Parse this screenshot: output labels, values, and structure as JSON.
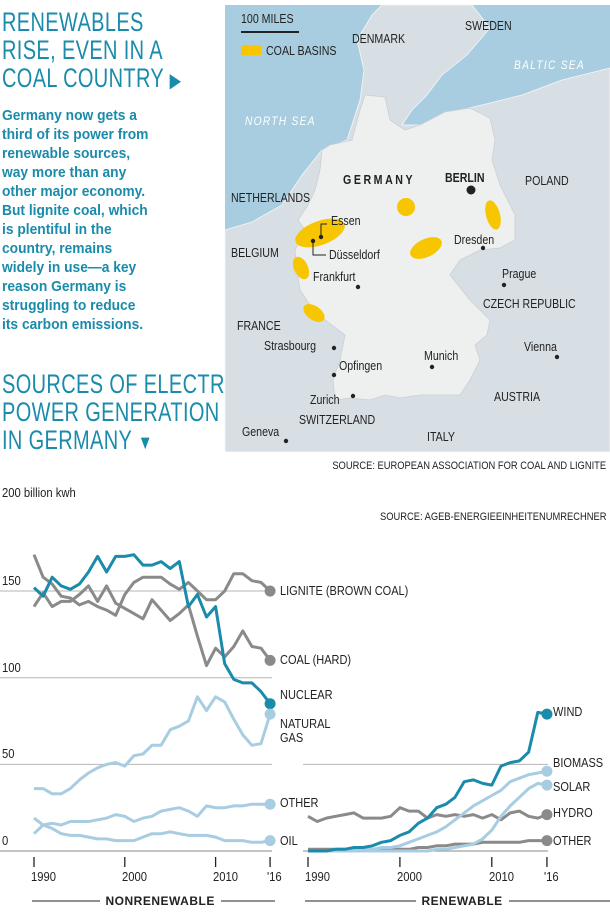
{
  "header": {
    "title_lines": [
      "RENEWABLES",
      "RISE, EVEN IN A",
      "COAL COUNTRY"
    ],
    "intro_lines": [
      "Germany now gets a",
      "third of its power from",
      "renewable sources,",
      "way more than any",
      "other major economy.",
      "But lignite coal, which",
      "is plentiful in the",
      "country, remains",
      "widely in use—a key",
      "reason Germany is",
      "struggling to reduce",
      "its carbon emissions."
    ],
    "section_title_lines": [
      "SOURCES OF ELECTRIC",
      "POWER GENERATION",
      "IN GERMANY"
    ],
    "accent_color": "#1a8bab"
  },
  "map": {
    "scale_label": "100 MILES",
    "legend_label": "COAL BASINS",
    "coal_color": "#f7c600",
    "labels": {
      "denmark": "DENMARK",
      "sweden": "SWEDEN",
      "baltic_sea": "BALTIC SEA",
      "north_sea": "NORTH SEA",
      "germany": "GERMANY",
      "berlin": "BERLIN",
      "poland": "POLAND",
      "netherlands": "NETHERLANDS",
      "essen": "Essen",
      "dusseldorf": "Düsseldorf",
      "belgium": "BELGIUM",
      "dresden": "Dresden",
      "frankfurt": "Frankfurt",
      "prague": "Prague",
      "czech_republic": "CZECH REPUBLIC",
      "france": "FRANCE",
      "strasbourg": "Strasbourg",
      "vienna": "Vienna",
      "munich": "Munich",
      "opfingen": "Opfingen",
      "zurich": "Zurich",
      "austria": "AUSTRIA",
      "switzerland": "SWITZERLAND",
      "geneva": "Geneva",
      "italy": "ITALY"
    },
    "source": "SOURCE: EUROPEAN ASSOCIATION FOR COAL AND LIGNITE"
  },
  "chart_data": [
    {
      "type": "line",
      "title": "Nonrenewable",
      "panel_label": "NONRENEWABLE",
      "ylabel": "200 billion kwh",
      "ylim": [
        0,
        200
      ],
      "yticks": [
        "0",
        "50",
        "100",
        "150"
      ],
      "xticks": [
        "1990",
        "2000",
        "2010",
        "'16"
      ],
      "x": [
        1990,
        1991,
        1992,
        1993,
        1994,
        1995,
        1996,
        1997,
        1998,
        1999,
        2000,
        2001,
        2002,
        2003,
        2004,
        2005,
        2006,
        2007,
        2008,
        2009,
        2010,
        2011,
        2012,
        2013,
        2014,
        2015,
        2016
      ],
      "series": [
        {
          "name": "LIGNITE (BROWN COAL)",
          "color": "#8a8a8a",
          "values": [
            171,
            158,
            154,
            147,
            146,
            142,
            144,
            141,
            139,
            136,
            148,
            155,
            158,
            158,
            158,
            154,
            151,
            155,
            150,
            145,
            145,
            150,
            160,
            160,
            156,
            155,
            150
          ]
        },
        {
          "name": "COAL (HARD)",
          "color": "#8a8a8a",
          "values": [
            141,
            149,
            141,
            144,
            144,
            148,
            153,
            144,
            153,
            143,
            140,
            137,
            134,
            145,
            139,
            133,
            137,
            142,
            124,
            107,
            117,
            112,
            118,
            127,
            118,
            117,
            110
          ]
        },
        {
          "name": "NUCLEAR",
          "color": "#1a8bab",
          "values": [
            152,
            147,
            158,
            153,
            151,
            154,
            161,
            170,
            161,
            170,
            170,
            171,
            165,
            165,
            167,
            163,
            167,
            141,
            148,
            135,
            141,
            108,
            99,
            97,
            97,
            92,
            85
          ]
        },
        {
          "name": "NATURAL GAS",
          "color": "#a8cde2",
          "values": [
            36,
            36,
            33,
            33,
            36,
            41,
            45,
            48,
            50,
            51,
            49,
            55,
            56,
            61,
            61,
            70,
            72,
            75,
            89,
            81,
            89,
            86,
            76,
            67,
            61,
            62,
            79
          ]
        },
        {
          "name": "OTHER",
          "color": "#a8cde2",
          "values": [
            10,
            15,
            16,
            15,
            17,
            17,
            17,
            18,
            19,
            21,
            20,
            17,
            19,
            20,
            23,
            24,
            25,
            23,
            20,
            26,
            25,
            25,
            26,
            26,
            27,
            27,
            27
          ]
        },
        {
          "name": "OIL",
          "color": "#a8cde2",
          "values": [
            19,
            15,
            13,
            10,
            9,
            9,
            8,
            7,
            7,
            6,
            6,
            6,
            8,
            10,
            10,
            11,
            10,
            9,
            9,
            9,
            8,
            6,
            6,
            6,
            5,
            5,
            6
          ]
        }
      ]
    },
    {
      "type": "line",
      "title": "Renewable",
      "panel_label": "RENEWABLE",
      "ylim": [
        0,
        200
      ],
      "xticks": [
        "1990",
        "2000",
        "2010",
        "'16"
      ],
      "source": "SOURCE: AGEB-ENERGIEEINHEITENUMRECHNER",
      "x": [
        1990,
        1991,
        1992,
        1993,
        1994,
        1995,
        1996,
        1997,
        1998,
        1999,
        2000,
        2001,
        2002,
        2003,
        2004,
        2005,
        2006,
        2007,
        2008,
        2009,
        2010,
        2011,
        2012,
        2013,
        2014,
        2015,
        2016
      ],
      "series": [
        {
          "name": "HYDRO",
          "color": "#8a8a8a",
          "values": [
            20,
            17,
            19,
            20,
            21,
            22,
            19,
            19,
            19,
            20,
            25,
            23,
            23,
            19,
            21,
            20,
            21,
            20,
            21,
            19,
            21,
            18,
            22,
            23,
            20,
            19,
            21
          ]
        },
        {
          "name": "OTHER",
          "color": "#8a8a8a",
          "values": [
            1,
            1,
            1,
            1,
            1,
            1,
            1,
            1,
            1,
            1,
            1,
            1,
            2,
            2,
            3,
            3,
            4,
            4,
            4,
            5,
            5,
            5,
            5,
            5,
            6,
            6,
            6
          ]
        },
        {
          "name": "SOLAR",
          "color": "#a8cde2",
          "values": [
            0,
            0,
            0,
            0,
            0,
            0,
            0,
            0,
            0,
            0,
            0,
            0,
            0,
            0,
            1,
            1,
            2,
            3,
            4,
            7,
            12,
            20,
            26,
            31,
            36,
            39,
            38
          ]
        },
        {
          "name": "BIOMASS",
          "color": "#a8cde2",
          "values": [
            0,
            0,
            0,
            0,
            0,
            1,
            1,
            1,
            2,
            2,
            3,
            5,
            7,
            9,
            11,
            14,
            18,
            22,
            26,
            29,
            32,
            35,
            40,
            42,
            44,
            45,
            46
          ]
        },
        {
          "name": "WIND",
          "color": "#1a8bab",
          "values": [
            0,
            0,
            0,
            1,
            1,
            2,
            2,
            3,
            5,
            6,
            9,
            11,
            16,
            19,
            25,
            27,
            31,
            40,
            41,
            39,
            38,
            49,
            51,
            52,
            57,
            80,
            79
          ]
        }
      ]
    }
  ]
}
